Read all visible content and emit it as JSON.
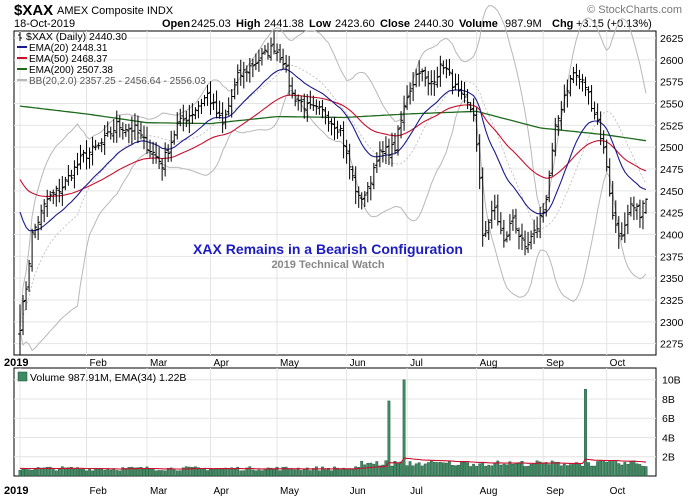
{
  "header": {
    "symbol": "$XAX",
    "exchange": "AMEX Composite INDX",
    "watermark": "© StockCharts.com",
    "date": "18-Oct-2019",
    "open_label": "Open",
    "open": "2425.03",
    "high_label": "High",
    "high": "2441.38",
    "low_label": "Low",
    "low": "2423.60",
    "close_label": "Close",
    "close": "2440.30",
    "volume_label": "Volume",
    "volume": "987.9M",
    "chg_label": "Chg",
    "chg": "+3.15 (+0.13%)"
  },
  "legend": {
    "symbol": "$XAX (Daily) 2440.30",
    "ema20": "EMA(20) 2448.31",
    "ema50": "EMA(50) 2468.37",
    "ema200": "EMA(200) 2507.38",
    "bb": "BB(20,2.0) 2357.25 - 2456.64 - 2556.03"
  },
  "annotation": {
    "title": "XAX Remains in a Bearish Configuration",
    "subtitle": "2019 Technical Watch"
  },
  "volume_legend": "Volume 987.91M, EMA(34) 1.22B",
  "colors": {
    "ema20": "#1a1a8c",
    "ema50": "#c8102e",
    "ema200": "#1e6b1e",
    "bb": "#b8b8b8",
    "volume": "#3d8a63",
    "annotation": "#1b1bc0"
  },
  "chart_data": [
    {
      "type": "ohlc",
      "title": "$XAX AMEX Composite INDX",
      "x_labels": [
        "2019",
        "Feb",
        "Mar",
        "Apr",
        "May",
        "Jun",
        "Jul",
        "Aug",
        "Sep",
        "Oct"
      ],
      "y_ticks": [
        2275,
        2300,
        2325,
        2350,
        2375,
        2400,
        2425,
        2450,
        2475,
        2500,
        2525,
        2550,
        2575,
        2600,
        2625
      ],
      "ylim": [
        2262,
        2633
      ],
      "grid": true,
      "price_anchors": [
        {
          "date": "2019-01-02",
          "close": 2296
        },
        {
          "date": "2019-01-04",
          "close": 2340
        },
        {
          "date": "2019-01-08",
          "close": 2400
        },
        {
          "date": "2019-01-15",
          "close": 2440
        },
        {
          "date": "2019-01-22",
          "close": 2455
        },
        {
          "date": "2019-01-31",
          "close": 2490
        },
        {
          "date": "2019-02-07",
          "close": 2500
        },
        {
          "date": "2019-02-15",
          "close": 2525
        },
        {
          "date": "2019-02-25",
          "close": 2520
        },
        {
          "date": "2019-03-08",
          "close": 2480
        },
        {
          "date": "2019-03-15",
          "close": 2525
        },
        {
          "date": "2019-03-22",
          "close": 2540
        },
        {
          "date": "2019-03-29",
          "close": 2560
        },
        {
          "date": "2019-04-05",
          "close": 2525
        },
        {
          "date": "2019-04-12",
          "close": 2580
        },
        {
          "date": "2019-04-19",
          "close": 2595
        },
        {
          "date": "2019-04-30",
          "close": 2615
        },
        {
          "date": "2019-05-03",
          "close": 2600
        },
        {
          "date": "2019-05-08",
          "close": 2560
        },
        {
          "date": "2019-05-15",
          "close": 2545
        },
        {
          "date": "2019-05-22",
          "close": 2540
        },
        {
          "date": "2019-05-30",
          "close": 2520
        },
        {
          "date": "2019-06-03",
          "close": 2490
        },
        {
          "date": "2019-06-07",
          "close": 2440
        },
        {
          "date": "2019-06-12",
          "close": 2450
        },
        {
          "date": "2019-06-17",
          "close": 2490
        },
        {
          "date": "2019-06-25",
          "close": 2500
        },
        {
          "date": "2019-07-01",
          "close": 2560
        },
        {
          "date": "2019-07-05",
          "close": 2590
        },
        {
          "date": "2019-07-10",
          "close": 2570
        },
        {
          "date": "2019-07-17",
          "close": 2595
        },
        {
          "date": "2019-07-24",
          "close": 2560
        },
        {
          "date": "2019-07-31",
          "close": 2540
        },
        {
          "date": "2019-08-02",
          "close": 2460
        },
        {
          "date": "2019-08-05",
          "close": 2400
        },
        {
          "date": "2019-08-09",
          "close": 2430
        },
        {
          "date": "2019-08-14",
          "close": 2390
        },
        {
          "date": "2019-08-19",
          "close": 2420
        },
        {
          "date": "2019-08-23",
          "close": 2380
        },
        {
          "date": "2019-08-28",
          "close": 2400
        },
        {
          "date": "2019-09-03",
          "close": 2440
        },
        {
          "date": "2019-09-06",
          "close": 2520
        },
        {
          "date": "2019-09-11",
          "close": 2560
        },
        {
          "date": "2019-09-16",
          "close": 2585
        },
        {
          "date": "2019-09-20",
          "close": 2570
        },
        {
          "date": "2019-09-26",
          "close": 2530
        },
        {
          "date": "2019-10-01",
          "close": 2480
        },
        {
          "date": "2019-10-03",
          "close": 2420
        },
        {
          "date": "2019-10-08",
          "close": 2395
        },
        {
          "date": "2019-10-11",
          "close": 2430
        },
        {
          "date": "2019-10-16",
          "close": 2425
        },
        {
          "date": "2019-10-18",
          "close": 2440.3
        }
      ],
      "ema_end_values": {
        "EMA(20)": 2448.31,
        "EMA(50)": 2468.37,
        "EMA(200)": 2507.38
      },
      "ema200_approx": [
        {
          "date": "2019-01-02",
          "value": 2547
        },
        {
          "date": "2019-02-01",
          "value": 2538
        },
        {
          "date": "2019-03-01",
          "value": 2528
        },
        {
          "date": "2019-04-01",
          "value": 2527
        },
        {
          "date": "2019-05-01",
          "value": 2535
        },
        {
          "date": "2019-06-01",
          "value": 2534
        },
        {
          "date": "2019-07-01",
          "value": 2538
        },
        {
          "date": "2019-08-01",
          "value": 2541
        },
        {
          "date": "2019-09-01",
          "value": 2522
        },
        {
          "date": "2019-10-01",
          "value": 2514
        },
        {
          "date": "2019-10-18",
          "value": 2507.38
        }
      ],
      "bollinger": {
        "period": 20,
        "stddev": 2.0,
        "lower": 2357.25,
        "middle": 2456.64,
        "upper": 2556.03
      }
    },
    {
      "type": "bar",
      "title": "Volume 987.91M, EMA(34) 1.22B",
      "y_ticks": [
        "2B",
        "4B",
        "6B",
        "8B",
        "10B"
      ],
      "ylim": [
        0,
        10.8
      ],
      "unit": "B",
      "baseline_volume_approx": 0.9,
      "spikes": [
        {
          "date": "2019-06-20",
          "value": 1.6
        },
        {
          "date": "2019-06-21",
          "value": 7.8
        },
        {
          "date": "2019-06-28",
          "value": 10.0
        },
        {
          "date": "2019-09-20",
          "value": 9.0
        },
        {
          "date": "2019-09-23",
          "value": 1.4
        }
      ],
      "ema34_end": 1.22
    }
  ]
}
